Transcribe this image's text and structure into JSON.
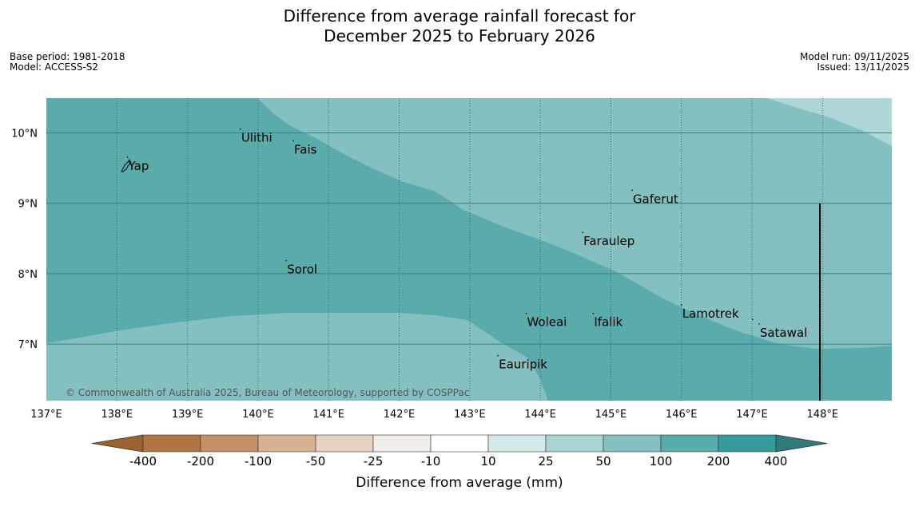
{
  "title": {
    "line1": "Difference from average rainfall forecast for",
    "line2": "December 2025 to February 2026"
  },
  "info_left": {
    "base_period": "Base period: 1981-2018",
    "model": "Model: ACCESS-S2"
  },
  "info_right": {
    "model_run": "Model run: 09/11/2025",
    "issued": "Issued: 13/11/2025"
  },
  "map": {
    "lon_range": [
      137,
      149
    ],
    "lat_range": [
      6.2,
      10.5
    ],
    "lon_ticks": [
      "137°E",
      "138°E",
      "139°E",
      "140°E",
      "141°E",
      "142°E",
      "143°E",
      "144°E",
      "145°E",
      "146°E",
      "147°E",
      "148°E"
    ],
    "lat_ticks": [
      "10°N",
      "9°N",
      "8°N",
      "7°N"
    ],
    "copyright": "© Commonwealth of Australia 2025, Bureau of Meteorology, supported by COSPPac",
    "places": [
      {
        "name": "Yap",
        "lon": 138.15,
        "lat": 9.52
      },
      {
        "name": "Ulithi",
        "lon": 139.75,
        "lat": 9.92
      },
      {
        "name": "Fais",
        "lon": 140.5,
        "lat": 9.75
      },
      {
        "name": "Gaferut",
        "lon": 145.3,
        "lat": 9.05
      },
      {
        "name": "Faraulep",
        "lon": 144.6,
        "lat": 8.45
      },
      {
        "name": "Sorol",
        "lon": 140.4,
        "lat": 8.05
      },
      {
        "name": "Lamotrek",
        "lon": 146.0,
        "lat": 7.42
      },
      {
        "name": "Woleai",
        "lon": 143.8,
        "lat": 7.3
      },
      {
        "name": "Ifalik",
        "lon": 144.75,
        "lat": 7.3
      },
      {
        "name": "Satawal",
        "lon": 147.1,
        "lat": 7.15
      },
      {
        "name": "Eauripik",
        "lon": 143.4,
        "lat": 6.7
      }
    ],
    "colors": {
      "dark_teal": "#5aabab",
      "mid_teal": "#84c0bf",
      "light_teal": "#afd6d6"
    }
  },
  "colorbar": {
    "label": "Difference from average (mm)",
    "ticks": [
      "-400",
      "-200",
      "-100",
      "-50",
      "-25",
      "-10",
      "10",
      "25",
      "50",
      "100",
      "200",
      "400"
    ],
    "colors": [
      "#9c6330",
      "#b07540",
      "#c39168",
      "#d6b293",
      "#e6d2c2",
      "#f1ede8",
      "#ffffff",
      "#d4e9e9",
      "#a9d4d4",
      "#84c0bf",
      "#5aabab",
      "#349a9a",
      "#2f7b7b"
    ]
  }
}
